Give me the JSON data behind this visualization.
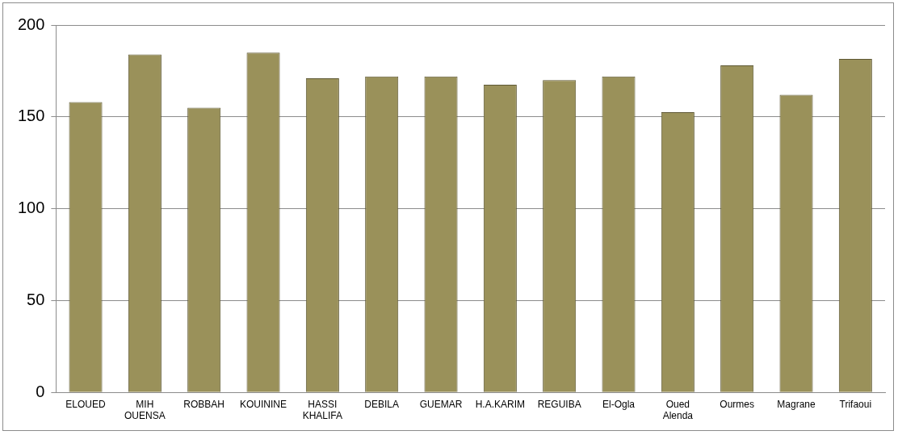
{
  "chart_data": {
    "type": "bar",
    "categories": [
      "ELOUED",
      "MIH OUENSA",
      "ROBBAH",
      "KOUININE",
      "HASSI KHALIFA",
      "DEBILA",
      "GUEMAR",
      "H.A.KARIM",
      "REGUIBA",
      "El-Ogla",
      "Oued Alenda",
      "Ourmes",
      "Magrane",
      "Trifaoui"
    ],
    "values": [
      158,
      184,
      155,
      185,
      171,
      172,
      172,
      167.5,
      170,
      172,
      152.5,
      178,
      162,
      181.5
    ],
    "color": "#9a915a",
    "ylim": [
      0,
      200
    ],
    "yticks": [
      0,
      50,
      100,
      150,
      200
    ],
    "grid": "y",
    "legend": false
  }
}
